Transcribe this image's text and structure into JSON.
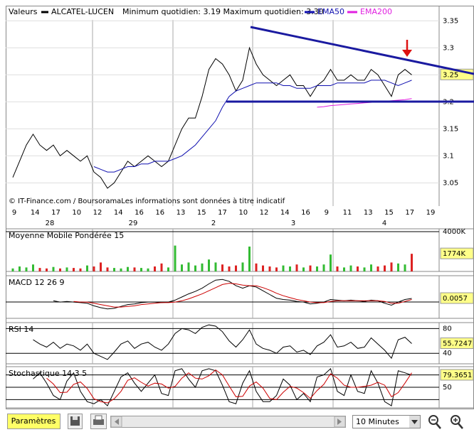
{
  "header": {
    "label": "Valeurs",
    "symbol": "ALCATEL-LUCEN",
    "range": "Minimum quotidien: 3.19 Maximum quotidien: 3.30"
  },
  "chart_data": [
    {
      "type": "line",
      "note": "© IT-Finance.com / BoursoramaLes informations sont données à titre indicatif",
      "ylim": [
        3.007,
        3.378
      ],
      "yticks": [
        3.05,
        3.1,
        3.15,
        3.2,
        3.25,
        3.3,
        3.35
      ],
      "last_value": 3.25,
      "xtick_labels": [
        "9",
        "14",
        "17",
        "10",
        "12",
        "14",
        "16",
        "16",
        "13",
        "15",
        "17",
        "10",
        "12",
        "14",
        "16",
        "9",
        "11",
        "13",
        "15",
        "17",
        "19"
      ],
      "xtick_groups": [
        "28",
        "29",
        "2",
        "3",
        "4"
      ],
      "series": [
        {
          "name": "ALCATEL-LUCEN",
          "color": "#000000",
          "values": [
            3.06,
            3.09,
            3.12,
            3.14,
            3.12,
            3.11,
            3.12,
            3.1,
            3.11,
            3.1,
            3.09,
            3.1,
            3.07,
            3.06,
            3.04,
            3.05,
            3.07,
            3.09,
            3.08,
            3.09,
            3.1,
            3.09,
            3.08,
            3.09,
            3.12,
            3.15,
            3.17,
            3.17,
            3.21,
            3.26,
            3.28,
            3.27,
            3.25,
            3.22,
            3.24,
            3.3,
            3.27,
            3.25,
            3.24,
            3.23,
            3.24,
            3.25,
            3.23,
            3.23,
            3.21,
            3.23,
            3.24,
            3.26,
            3.24,
            3.24,
            3.25,
            3.24,
            3.24,
            3.26,
            3.25,
            3.23,
            3.21,
            3.25,
            3.26,
            3.25
          ]
        },
        {
          "name": "EMA50",
          "color": "#1010b0",
          "values": [
            null,
            null,
            null,
            null,
            null,
            null,
            null,
            null,
            null,
            null,
            null,
            null,
            3.08,
            3.075,
            3.07,
            3.07,
            3.075,
            3.08,
            3.08,
            3.085,
            3.085,
            3.09,
            3.09,
            3.09,
            3.095,
            3.1,
            3.11,
            3.12,
            3.135,
            3.15,
            3.165,
            3.19,
            3.21,
            3.22,
            3.225,
            3.23,
            3.235,
            3.235,
            3.235,
            3.235,
            3.23,
            3.23,
            3.225,
            3.225,
            3.225,
            3.23,
            3.23,
            3.23,
            3.235,
            3.235,
            3.235,
            3.235,
            3.235,
            3.24,
            3.24,
            3.24,
            3.235,
            3.23,
            3.235,
            3.24
          ]
        },
        {
          "name": "EMA200",
          "color": "#e020e0",
          "values": [
            null,
            null,
            null,
            null,
            null,
            null,
            null,
            null,
            null,
            null,
            null,
            null,
            null,
            null,
            null,
            null,
            null,
            null,
            null,
            null,
            null,
            null,
            null,
            null,
            null,
            null,
            null,
            null,
            null,
            null,
            null,
            null,
            null,
            null,
            null,
            null,
            null,
            null,
            null,
            null,
            null,
            null,
            null,
            null,
            null,
            3.19,
            3.191,
            3.193,
            3.194,
            3.195,
            3.196,
            3.197,
            3.198,
            3.199,
            3.2,
            3.201,
            3.202,
            3.203,
            3.204,
            3.206
          ]
        }
      ]
    },
    {
      "type": "bar",
      "title": "Moyenne Mobile Pondérée 15",
      "color": "#33bb33",
      "down_color": "#dd2222",
      "ylim": [
        0,
        4286
      ],
      "yticks": [
        {
          "value": 4000,
          "label": "4000K"
        }
      ],
      "last_value": {
        "value": 1774,
        "label": "1774K"
      },
      "values": [
        300,
        500,
        400,
        700,
        350,
        300,
        450,
        300,
        400,
        350,
        300,
        600,
        500,
        900,
        400,
        350,
        300,
        450,
        400,
        350,
        300,
        500,
        800,
        400,
        2600,
        700,
        900,
        600,
        800,
        1200,
        900,
        700,
        500,
        600,
        900,
        2500,
        800,
        600,
        500,
        400,
        600,
        500,
        700,
        400,
        600,
        500,
        700,
        1700,
        500,
        400,
        600,
        500,
        400,
        700,
        500,
        600,
        900,
        800,
        700,
        1774
      ]
    },
    {
      "type": "line",
      "title": "MACD 12 26 9",
      "ylim": [
        -0.026,
        0.042
      ],
      "levels": [
        0
      ],
      "last_value": 0.0057,
      "series": [
        {
          "color": "#000000",
          "values": [
            null,
            null,
            null,
            null,
            null,
            null,
            0.002,
            0,
            0.001,
            0,
            -0.001,
            -0.002,
            -0.006,
            -0.009,
            -0.011,
            -0.01,
            -0.007,
            -0.004,
            -0.003,
            -0.001,
            0,
            0,
            -0.001,
            0,
            0.003,
            0.008,
            0.013,
            0.017,
            0.022,
            0.029,
            0.035,
            0.036,
            0.033,
            0.026,
            0.022,
            0.026,
            0.024,
            0.018,
            0.012,
            0.006,
            0.004,
            0.003,
            0.001,
            0,
            -0.003,
            -0.002,
            0,
            0.004,
            0.003,
            0.002,
            0.003,
            0.002,
            0.001,
            0.003,
            0.002,
            -0.002,
            -0.005,
            0,
            0.004,
            0.0057
          ]
        },
        {
          "color": "#cc0000",
          "values": [
            null,
            null,
            null,
            null,
            null,
            null,
            null,
            null,
            null,
            0.001,
            0,
            0,
            -0.002,
            -0.004,
            -0.006,
            -0.008,
            -0.008,
            -0.007,
            -0.006,
            -0.004,
            -0.003,
            -0.002,
            -0.001,
            -0.001,
            0,
            0.002,
            0.005,
            0.009,
            0.013,
            0.018,
            0.023,
            0.028,
            0.03,
            0.029,
            0.027,
            0.026,
            0.026,
            0.023,
            0.019,
            0.014,
            0.01,
            0.007,
            0.004,
            0.002,
            0,
            -0.001,
            -0.001,
            0.001,
            0.002,
            0.002,
            0.002,
            0.002,
            0.002,
            0.002,
            0.002,
            0.001,
            -0.002,
            -0.002,
            0.001,
            0.004
          ]
        }
      ]
    },
    {
      "type": "line",
      "title": "RSI 14",
      "ylim": [
        23,
        89.7
      ],
      "yticks": [
        80,
        40
      ],
      "last_value": 55.7247,
      "series": [
        {
          "color": "#000000",
          "values": [
            null,
            null,
            null,
            62,
            55,
            50,
            58,
            48,
            55,
            52,
            45,
            55,
            40,
            35,
            30,
            42,
            55,
            60,
            48,
            55,
            58,
            50,
            45,
            55,
            72,
            80,
            78,
            72,
            82,
            86,
            84,
            75,
            60,
            50,
            62,
            78,
            55,
            48,
            45,
            40,
            50,
            52,
            42,
            45,
            38,
            52,
            58,
            70,
            50,
            52,
            58,
            48,
            50,
            65,
            55,
            45,
            32,
            62,
            66,
            55.7247
          ]
        }
      ]
    },
    {
      "type": "line",
      "title": "Stochastique 14 3 5",
      "ylim": [
        0,
        100
      ],
      "yticks": [
        50
      ],
      "levels": [
        20,
        80
      ],
      "last_value": 79.3651,
      "series": [
        {
          "color": "#000000",
          "values": [
            null,
            null,
            null,
            70,
            85,
            60,
            30,
            20,
            65,
            85,
            40,
            15,
            10,
            20,
            5,
            40,
            75,
            85,
            60,
            40,
            60,
            80,
            35,
            30,
            90,
            95,
            70,
            50,
            90,
            95,
            90,
            55,
            15,
            10,
            60,
            90,
            40,
            15,
            15,
            30,
            70,
            55,
            20,
            35,
            15,
            75,
            80,
            95,
            40,
            30,
            80,
            40,
            35,
            90,
            60,
            15,
            5,
            90,
            85,
            79.3651
          ]
        },
        {
          "color": "#cc0000",
          "values": [
            null,
            null,
            null,
            null,
            null,
            72,
            58,
            37,
            38,
            57,
            63,
            47,
            22,
            15,
            12,
            22,
            40,
            67,
            73,
            62,
            53,
            60,
            58,
            48,
            52,
            72,
            85,
            72,
            70,
            78,
            92,
            80,
            53,
            27,
            28,
            53,
            63,
            48,
            23,
            20,
            38,
            52,
            48,
            37,
            23,
            42,
            57,
            83,
            72,
            55,
            50,
            50,
            52,
            55,
            62,
            55,
            27,
            37,
            60,
            85
          ]
        }
      ]
    }
  ],
  "toolbar": {
    "button": "Paramètres",
    "interval": "10 Minutes"
  }
}
